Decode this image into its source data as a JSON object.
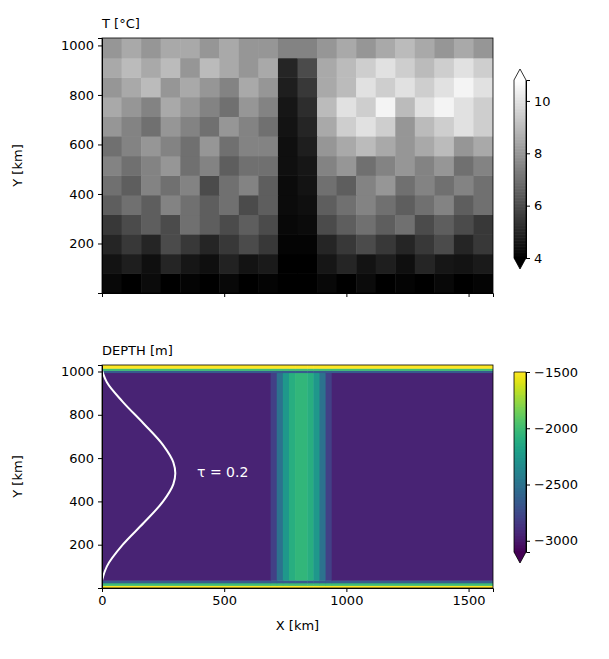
{
  "chart_data": [
    {
      "type": "heatmap",
      "title": "T [°C]",
      "y_label": "Y [km]",
      "color": "gray",
      "xlim": [
        0,
        1600
      ],
      "ylim": [
        0,
        1030
      ],
      "xticks": [
        0,
        500,
        1000,
        1500
      ],
      "yticks": [
        200,
        400,
        600,
        800,
        1000
      ],
      "tick_labels": "y",
      "x_edges": [
        0,
        80,
        160,
        240,
        320,
        400,
        480,
        560,
        640,
        720,
        800,
        880,
        960,
        1040,
        1120,
        1200,
        1280,
        1360,
        1440,
        1520,
        1600
      ],
      "y_edges": [
        0,
        79,
        158,
        238,
        317,
        396,
        475,
        554,
        634,
        713,
        792,
        871,
        950,
        1030
      ],
      "cells": [
        [
          4.2,
          4,
          4.3,
          4,
          4.1,
          4,
          4.2,
          4,
          4.1,
          4,
          4,
          4.2,
          4,
          4.3,
          4,
          4.1,
          4,
          4.2,
          4,
          4.1
        ],
        [
          4.5,
          4.8,
          4.4,
          5,
          4.6,
          4.4,
          4.9,
          4.5,
          4.7,
          4,
          4,
          4.6,
          5,
          4.5,
          4.8,
          4.4,
          5,
          4.6,
          4.5,
          4.7
        ],
        [
          5,
          5.5,
          5,
          6,
          5.5,
          5,
          5.5,
          6,
          5.5,
          4.1,
          4.1,
          5,
          5.5,
          6,
          5.5,
          5,
          5.5,
          6,
          5,
          5.5
        ],
        [
          5.5,
          6,
          6.5,
          6,
          7,
          6.5,
          6,
          6.5,
          6,
          4.2,
          4.3,
          6,
          6.5,
          7,
          6.5,
          7,
          6,
          6.5,
          6,
          5.5
        ],
        [
          6.5,
          7,
          6.5,
          7.5,
          7,
          6.5,
          7,
          6,
          6.5,
          4.3,
          4.4,
          6.5,
          7,
          7.5,
          7,
          6.5,
          7,
          7.5,
          6.5,
          7
        ],
        [
          7,
          6.5,
          7.5,
          7,
          7.5,
          6,
          7,
          7.5,
          6.5,
          4.3,
          4.5,
          7,
          6.5,
          7.5,
          8,
          7,
          7.5,
          7,
          7.5,
          7
        ],
        [
          7.5,
          7,
          7.5,
          8,
          7,
          7.5,
          6.5,
          7,
          7,
          4.4,
          4.6,
          7.5,
          8,
          7,
          7.5,
          8,
          7.5,
          8,
          7,
          7.5
        ],
        [
          7,
          7.5,
          8,
          7.5,
          7,
          8,
          7,
          7.5,
          7.5,
          4.4,
          4.8,
          8,
          8.5,
          9,
          8.5,
          8,
          8.5,
          9,
          8,
          8.5
        ],
        [
          8,
          7.5,
          7,
          8,
          7.5,
          7,
          8,
          7.5,
          7,
          4.5,
          5,
          8.5,
          9.5,
          10,
          9.5,
          8,
          9,
          9.5,
          10,
          9.5
        ],
        [
          8.5,
          8,
          7.5,
          8.5,
          8,
          7.5,
          7,
          8,
          7.5,
          4.6,
          5.2,
          9,
          10,
          9.5,
          10.5,
          9,
          10,
          10.5,
          10,
          9.5
        ],
        [
          8,
          8.5,
          9,
          8,
          8.5,
          8,
          7.5,
          8.5,
          8,
          4.8,
          5.5,
          8.5,
          9,
          10,
          9.5,
          10,
          9.5,
          10,
          10.5,
          10
        ],
        [
          8.5,
          9,
          8.5,
          9,
          8,
          9,
          8.5,
          8,
          8.5,
          5,
          6,
          8.5,
          9,
          9.5,
          10,
          9.5,
          9,
          9.5,
          10,
          9.5
        ],
        [
          8,
          8.5,
          8,
          8.5,
          8.5,
          8,
          8.5,
          8,
          8,
          7.5,
          7.5,
          8,
          8.5,
          8,
          8.5,
          9,
          8.5,
          8,
          8.5,
          8
        ]
      ],
      "colorbar_lim": [
        4,
        10.8
      ],
      "colorbar_ticks": [
        4,
        6,
        8,
        10
      ]
    },
    {
      "type": "heatmap",
      "title": "DEPTH [m]",
      "x_label": "X [km]",
      "y_label": "Y [km]",
      "color": "viridis",
      "xlim": [
        0,
        1600
      ],
      "ylim": [
        0,
        1030
      ],
      "xticks": [
        0,
        500,
        1000,
        1500
      ],
      "yticks": [
        200,
        400,
        600,
        800,
        1000
      ],
      "x_edges": [
        0,
        690,
        715,
        740,
        765,
        790,
        840,
        865,
        890,
        915,
        940,
        1600
      ],
      "y_edges": [
        0,
        12,
        24,
        36,
        995,
        1005,
        1015,
        1030
      ],
      "cells": [
        [
          -1500,
          -1500,
          -1500,
          -1500,
          -1500,
          -1500,
          -1500,
          -1500,
          -1500,
          -1500,
          -1500
        ],
        [
          -2000,
          -2000,
          -2000,
          -2000,
          -2000,
          -2000,
          -2000,
          -2000,
          -2000,
          -2000,
          -2000
        ],
        [
          -2650,
          -2650,
          -2650,
          -2650,
          -2650,
          -2650,
          -2650,
          -2650,
          -2650,
          -2650,
          -2650
        ],
        [
          -2950,
          -2800,
          -2500,
          -2250,
          -2100,
          -2050,
          -2100,
          -2250,
          -2500,
          -2800,
          -2950
        ],
        [
          -2650,
          -2650,
          -2650,
          -2650,
          -2650,
          -2650,
          -2650,
          -2650,
          -2650,
          -2650,
          -2650
        ],
        [
          -2000,
          -2000,
          -2000,
          -2000,
          -2000,
          -2000,
          -2000,
          -2000,
          -2000,
          -2000,
          -2000
        ],
        [
          -1500,
          -1500,
          -1500,
          -1500,
          -1500,
          -1500,
          -1500,
          -1500,
          -1500,
          -1500,
          -1500
        ]
      ],
      "colorbar_lim": [
        -3100,
        -1500
      ],
      "colorbar_ticks": [
        {
          "value": -3000,
          "label": "−3000"
        },
        {
          "value": -2500,
          "label": "−2500"
        },
        {
          "value": -2000,
          "label": "−2000"
        },
        {
          "value": -1500,
          "label": "−1500"
        }
      ],
      "curve": {
        "color": "white",
        "x": [
          0,
          20,
          85,
          170,
          250,
          292,
          300,
          292,
          250,
          170,
          85,
          20,
          0
        ],
        "y": [
          35,
          100,
          200,
          300,
          400,
          480,
          530,
          580,
          660,
          760,
          860,
          950,
          1005
        ]
      },
      "annotation": {
        "text": "τ = 0.2",
        "x": 389,
        "y": 530
      }
    }
  ]
}
